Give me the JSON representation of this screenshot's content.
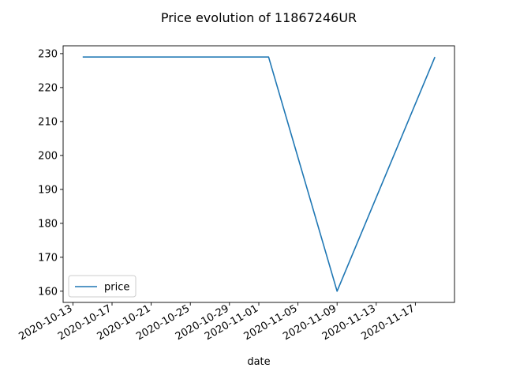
{
  "chart_data": {
    "type": "line",
    "title": "Price evolution of 11867246UR",
    "xlabel": "date",
    "ylabel": "",
    "x_type": "date",
    "xlim": [
      "2020-10-12",
      "2020-11-21"
    ],
    "ylim": [
      156.7,
      232.3
    ],
    "x_ticks": [
      "2020-10-13",
      "2020-10-17",
      "2020-10-21",
      "2020-10-25",
      "2020-10-29",
      "2020-11-01",
      "2020-11-05",
      "2020-11-09",
      "2020-11-13",
      "2020-11-17"
    ],
    "y_ticks": [
      160,
      170,
      180,
      190,
      200,
      210,
      220,
      230
    ],
    "grid": false,
    "legend": {
      "position": "lower-left",
      "entries": [
        "price"
      ]
    },
    "series": [
      {
        "name": "price",
        "color": "#1f77b4",
        "x": [
          "2020-10-14",
          "2020-11-02",
          "2020-11-09",
          "2020-11-19"
        ],
        "y": [
          229,
          229,
          160,
          229
        ]
      }
    ]
  }
}
